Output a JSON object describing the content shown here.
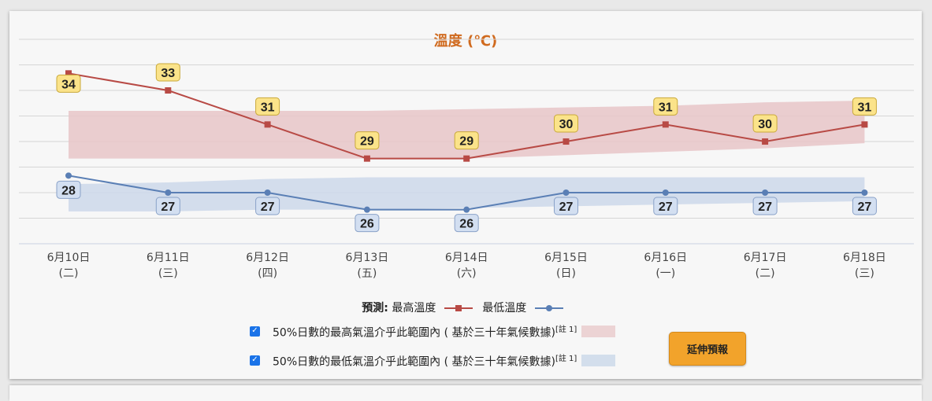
{
  "chart_data": {
    "type": "line",
    "title": "溫度 (℃)",
    "categories": [
      "6月10日",
      "6月11日",
      "6月12日",
      "6月13日",
      "6月14日",
      "6月15日",
      "6月16日",
      "6月17日",
      "6月18日"
    ],
    "weekdays": [
      "(二)",
      "(三)",
      "(四)",
      "(五)",
      "(六)",
      "(日)",
      "(一)",
      "(二)",
      "(三)"
    ],
    "series": [
      {
        "name": "最高溫度",
        "values": [
          34,
          33,
          31,
          29,
          29,
          30,
          31,
          30,
          31
        ],
        "color": "#b84a45"
      },
      {
        "name": "最低溫度",
        "values": [
          28,
          27,
          27,
          26,
          26,
          27,
          27,
          27,
          27
        ],
        "color": "#5a7fb5"
      }
    ],
    "bands": [
      {
        "low": [
          29,
          29,
          29,
          29,
          29,
          29.2,
          29.4,
          29.6,
          29.9
        ],
        "high": [
          31.8,
          31.8,
          31.8,
          31.8,
          31.9,
          32.0,
          32.1,
          32.3,
          32.4
        ],
        "color": "#e8c6c8"
      },
      {
        "low": [
          25.9,
          25.9,
          26.0,
          26.0,
          26.1,
          26.2,
          26.3,
          26.4,
          26.5
        ],
        "high": [
          27.5,
          27.6,
          27.8,
          27.9,
          27.9,
          27.9,
          27.9,
          27.9,
          27.9
        ],
        "color": "#cdd8ea"
      }
    ],
    "ylim": [
      24,
      36
    ],
    "grid": true
  },
  "legend": {
    "prefix": "預測:",
    "max_label": "最高溫度",
    "min_label": "最低溫度"
  },
  "band_legend": {
    "max_text": "50%日數的最高氣溫介乎此範圍內 ( 基於三十年氣候數據)",
    "min_text": "50%日數的最低氣溫介乎此範圍內 ( 基於三十年氣候數據)",
    "note": "[註 1]",
    "max_color": "#ecd3d4",
    "min_color": "#d3deec"
  },
  "button": {
    "label": "延伸預報"
  }
}
